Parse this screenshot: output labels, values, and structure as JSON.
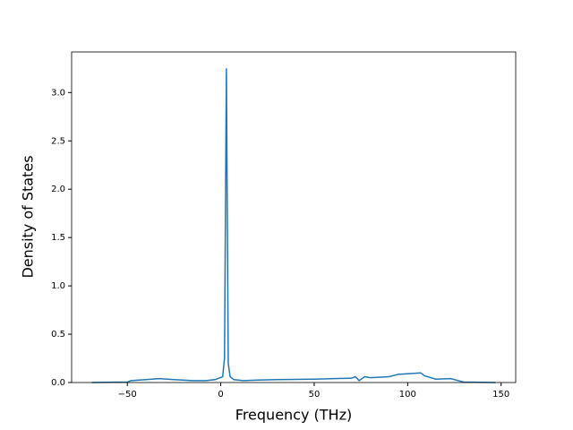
{
  "chart_data": {
    "type": "line",
    "xlabel": "Frequency (THz)",
    "ylabel": "Density of States",
    "x": [
      -69,
      -50,
      -48,
      -40,
      -33,
      -25,
      -15,
      -8,
      -3,
      1,
      2,
      3,
      4,
      5,
      7,
      12,
      20,
      30,
      50,
      70,
      72,
      74,
      77,
      80,
      90,
      95,
      107,
      109,
      115,
      123,
      130,
      147
    ],
    "series": [
      {
        "color": "#1f77b4",
        "values": [
          0,
          0.005,
          0.02,
          0.03,
          0.04,
          0.03,
          0.02,
          0.02,
          0.03,
          0.06,
          0.25,
          3.25,
          0.2,
          0.06,
          0.03,
          0.02,
          0.025,
          0.03,
          0.035,
          0.045,
          0.06,
          0.02,
          0.06,
          0.05,
          0.06,
          0.085,
          0.1,
          0.07,
          0.035,
          0.04,
          0.005,
          0
        ]
      }
    ],
    "xlim": [
      -79.8,
      157.8
    ],
    "ylim": [
      0,
      3.42
    ],
    "xticks": [
      {
        "value": -50,
        "label": "−50"
      },
      0,
      50,
      100,
      150
    ],
    "yticks": [
      {
        "value": 0,
        "label": "0.0"
      },
      {
        "value": 0.5,
        "label": "0.5"
      },
      {
        "value": 1,
        "label": "1.0"
      },
      {
        "value": 1.5,
        "label": "1.5"
      },
      {
        "value": 2,
        "label": "2.0"
      },
      {
        "value": 2.5,
        "label": "2.5"
      },
      {
        "value": 3,
        "label": "3.0"
      }
    ]
  }
}
